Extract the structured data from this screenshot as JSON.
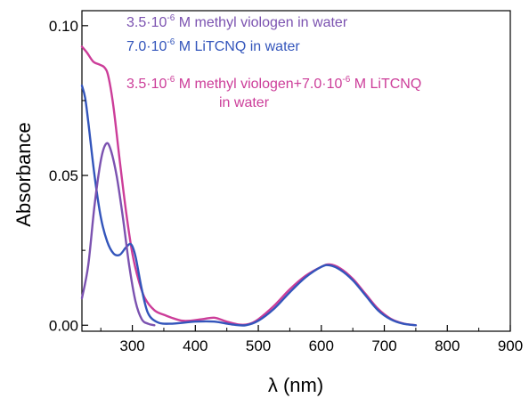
{
  "chart_data": {
    "type": "line",
    "xlabel": "λ (nm)",
    "ylabel": "Absorbance",
    "xlim": [
      220,
      900
    ],
    "ylim": [
      -0.002,
      0.105
    ],
    "x_ticks": [
      300,
      400,
      500,
      600,
      700,
      800,
      900
    ],
    "y_ticks": [
      0.0,
      0.05,
      0.1
    ],
    "y_tick_labels": [
      "0.00",
      "0.05",
      "0.10"
    ],
    "grid": false,
    "legend_position": "top",
    "series": [
      {
        "color": "#7b52b0",
        "legend_parts": [
          "3.5·10",
          "-6",
          " M methyl viologen in water"
        ],
        "x": [
          220,
          230,
          240,
          250,
          258,
          265,
          275,
          285,
          295,
          305,
          315,
          325,
          335
        ],
        "y": [
          0.009,
          0.02,
          0.04,
          0.055,
          0.0605,
          0.059,
          0.05,
          0.036,
          0.02,
          0.008,
          0.002,
          0.0005,
          0.0
        ]
      },
      {
        "color": "#3355bb",
        "legend_parts": [
          "7.0·10",
          "-6",
          " M LiTCNQ in water"
        ],
        "x": [
          220,
          225,
          230,
          240,
          250,
          260,
          270,
          280,
          290,
          298,
          305,
          315,
          325,
          340,
          360,
          400,
          430,
          460,
          480,
          500,
          525,
          550,
          575,
          600,
          613,
          630,
          650,
          670,
          690,
          710,
          730,
          750
        ],
        "y": [
          0.08,
          0.076,
          0.068,
          0.05,
          0.036,
          0.028,
          0.024,
          0.0235,
          0.026,
          0.027,
          0.023,
          0.012,
          0.004,
          0.001,
          0.0005,
          0.0012,
          0.0012,
          0.0002,
          0.0,
          0.0015,
          0.0055,
          0.011,
          0.016,
          0.0195,
          0.02,
          0.0185,
          0.015,
          0.01,
          0.005,
          0.002,
          0.0005,
          0.0
        ]
      },
      {
        "color": "#cc3d99",
        "legend_parts": [
          "3.5·10",
          "-6",
          " M methyl viologen+7.0·10",
          "-6",
          " M LiTCNQ"
        ],
        "legend_line2": "in water",
        "x": [
          220,
          228,
          238,
          248,
          256,
          262,
          270,
          280,
          290,
          300,
          310,
          320,
          335,
          350,
          380,
          410,
          430,
          450,
          470,
          485,
          500,
          525,
          550,
          575,
          600,
          613,
          630,
          650,
          670,
          690,
          710,
          730,
          750
        ],
        "y": [
          0.093,
          0.091,
          0.088,
          0.087,
          0.086,
          0.083,
          0.073,
          0.055,
          0.038,
          0.024,
          0.015,
          0.009,
          0.005,
          0.0035,
          0.0015,
          0.002,
          0.0025,
          0.0012,
          0.0002,
          0.0004,
          0.002,
          0.0065,
          0.012,
          0.0165,
          0.0195,
          0.0203,
          0.019,
          0.0155,
          0.0105,
          0.0055,
          0.0022,
          0.0006,
          0.0
        ]
      }
    ]
  }
}
